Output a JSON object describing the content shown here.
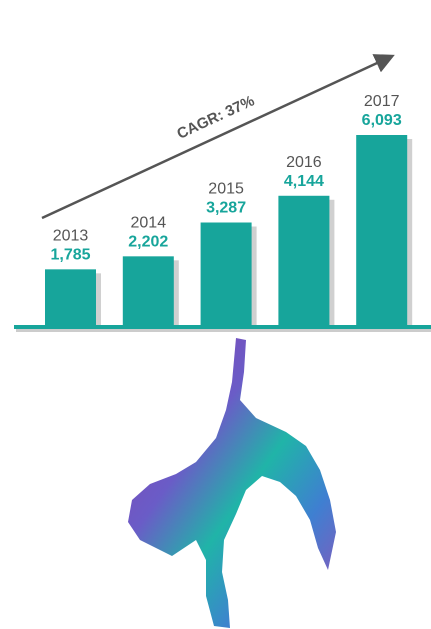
{
  "chart_data": {
    "type": "bar",
    "categories": [
      "2013",
      "2014",
      "2015",
      "2016",
      "2017"
    ],
    "values": [
      1785,
      2202,
      3287,
      4144,
      6093
    ],
    "value_labels": [
      "1,785",
      "2,202",
      "3,287",
      "4,144",
      "6,093"
    ],
    "color": "#17a59b",
    "annotation": "CAGR: 37%"
  }
}
